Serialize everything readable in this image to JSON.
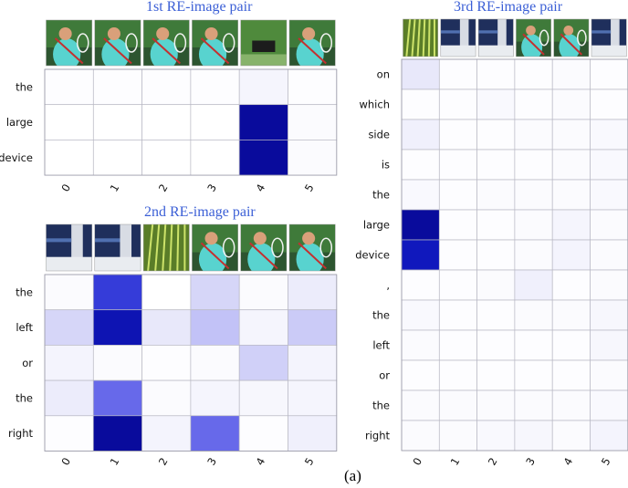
{
  "figure": {
    "caption": "(a)"
  },
  "chart_data": [
    {
      "type": "heatmap",
      "title": "1st RE-image pair",
      "rows": [
        "the",
        "large",
        "device"
      ],
      "columns": [
        "0",
        "1",
        "2",
        "3",
        "4",
        "5"
      ],
      "values": [
        [
          0.01,
          0.01,
          0.01,
          0.01,
          0.05,
          0.01
        ],
        [
          0.0,
          0.0,
          0.0,
          0.0,
          0.95,
          0.02
        ],
        [
          0.0,
          0.0,
          0.0,
          0.0,
          0.95,
          0.02
        ]
      ],
      "thumbnails": [
        "tennis-player",
        "tennis-player",
        "tennis-player",
        "tennis-player",
        "background-trees",
        "tennis-player"
      ]
    },
    {
      "type": "heatmap",
      "title": "2nd RE-image pair",
      "rows": [
        "the",
        "left",
        "or",
        "the",
        "right"
      ],
      "columns": [
        "0",
        "1",
        "2",
        "3",
        "4",
        "5"
      ],
      "values": [
        [
          0.02,
          0.7,
          0.0,
          0.18,
          0.02,
          0.1
        ],
        [
          0.18,
          0.88,
          0.12,
          0.25,
          0.05,
          0.22
        ],
        [
          0.06,
          0.02,
          0.01,
          0.02,
          0.2,
          0.06
        ],
        [
          0.1,
          0.55,
          0.02,
          0.05,
          0.04,
          0.05
        ],
        [
          0.01,
          0.95,
          0.06,
          0.55,
          0.01,
          0.08
        ]
      ],
      "thumbnails": [
        "blurred-device",
        "blurred-device",
        "foliage",
        "tennis-player",
        "tennis-player",
        "tennis-player"
      ]
    },
    {
      "type": "heatmap",
      "title": "3rd RE-image pair",
      "rows": [
        "on",
        "which",
        "side",
        "is",
        "the",
        "large",
        "device",
        ",",
        "the",
        "left",
        "or",
        "the",
        "right"
      ],
      "columns": [
        "0",
        "1",
        "2",
        "3",
        "4",
        "5"
      ],
      "values": [
        [
          0.12,
          0.01,
          0.01,
          0.01,
          0.02,
          0.01
        ],
        [
          0.01,
          0.01,
          0.03,
          0.01,
          0.02,
          0.01
        ],
        [
          0.08,
          0.01,
          0.01,
          0.02,
          0.02,
          0.03
        ],
        [
          0.01,
          0.01,
          0.01,
          0.01,
          0.02,
          0.03
        ],
        [
          0.03,
          0.01,
          0.02,
          0.02,
          0.02,
          0.03
        ],
        [
          0.95,
          0.01,
          0.01,
          0.02,
          0.05,
          0.02
        ],
        [
          0.85,
          0.01,
          0.01,
          0.02,
          0.06,
          0.02
        ],
        [
          0.01,
          0.01,
          0.02,
          0.08,
          0.01,
          0.02
        ],
        [
          0.03,
          0.01,
          0.01,
          0.02,
          0.02,
          0.04
        ],
        [
          0.02,
          0.01,
          0.01,
          0.01,
          0.01,
          0.04
        ],
        [
          0.01,
          0.01,
          0.01,
          0.01,
          0.01,
          0.02
        ],
        [
          0.02,
          0.02,
          0.02,
          0.02,
          0.02,
          0.03
        ],
        [
          0.02,
          0.02,
          0.03,
          0.04,
          0.02,
          0.06
        ]
      ],
      "thumbnails": [
        "foliage",
        "blurred-device",
        "blurred-device",
        "tennis-player",
        "tennis-player",
        "blurred-device"
      ]
    }
  ]
}
